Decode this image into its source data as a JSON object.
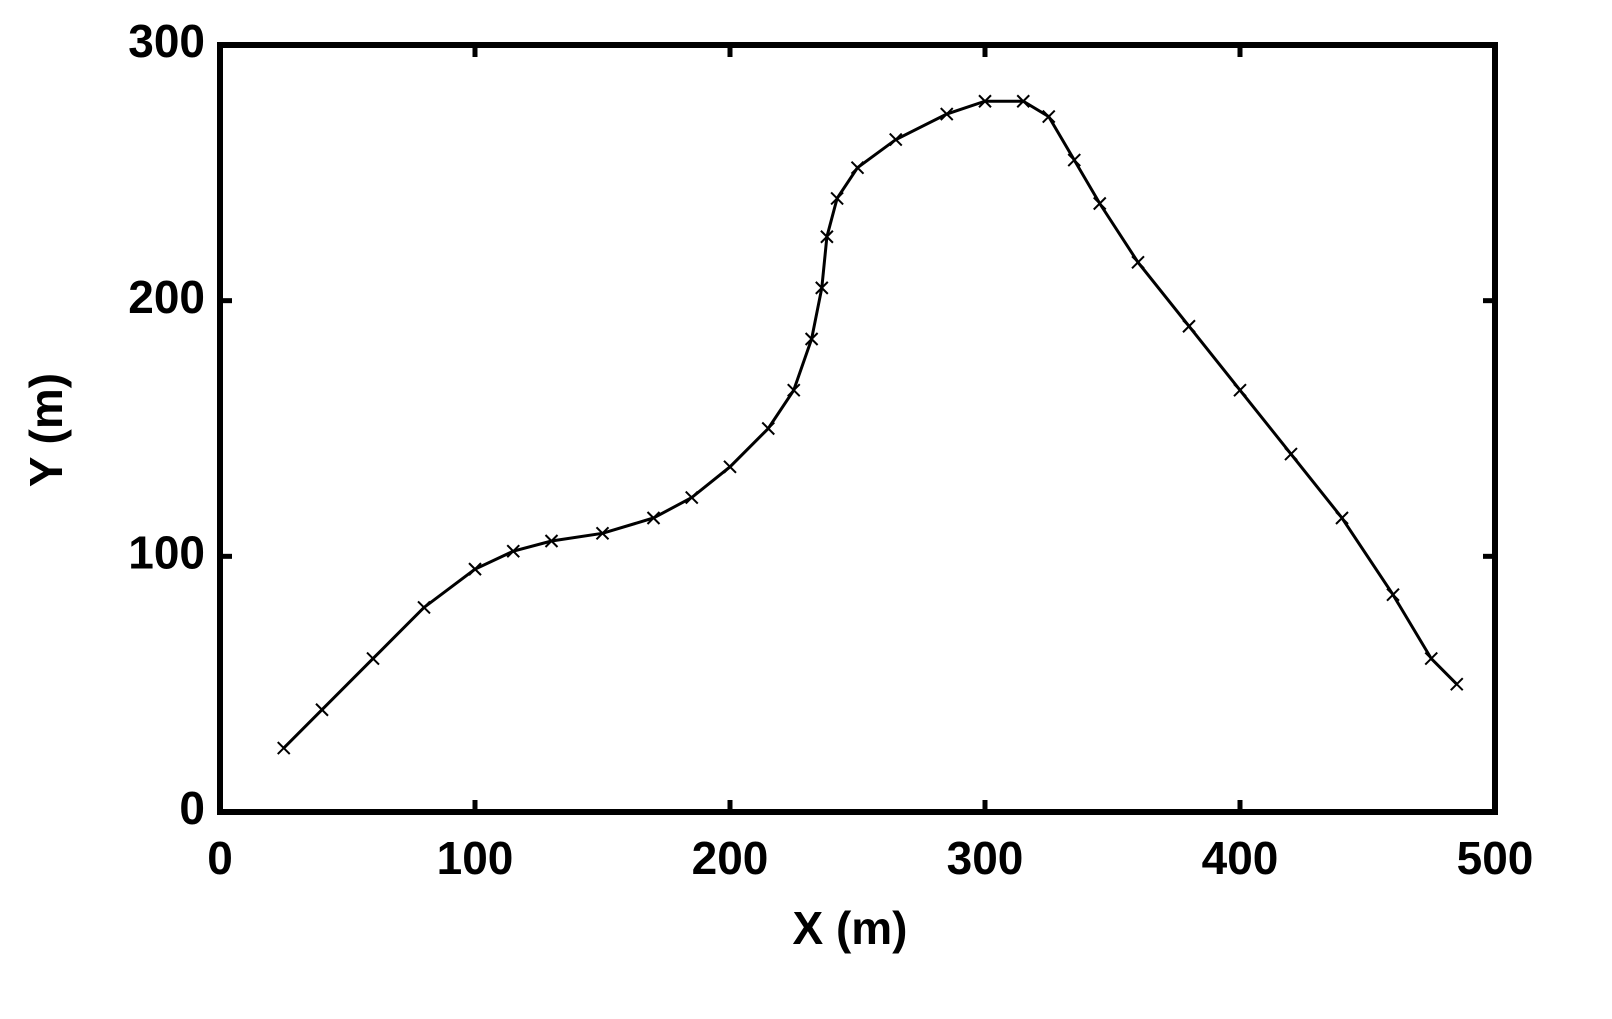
{
  "chart_data": {
    "type": "line",
    "marker": "x",
    "color": "#000000",
    "xlabel": "X (m)",
    "ylabel": "Y (m)",
    "x": [
      25,
      40,
      60,
      80,
      100,
      115,
      130,
      150,
      170,
      185,
      200,
      215,
      225,
      232,
      236,
      238,
      242,
      250,
      265,
      285,
      300,
      315,
      325,
      335,
      345,
      360,
      380,
      400,
      420,
      440,
      460,
      475,
      485
    ],
    "values": [
      25,
      40,
      60,
      80,
      95,
      102,
      106,
      109,
      115,
      123,
      135,
      150,
      165,
      185,
      205,
      225,
      240,
      252,
      263,
      273,
      278,
      278,
      272,
      255,
      238,
      215,
      190,
      165,
      140,
      115,
      85,
      60,
      50
    ],
    "xlim": [
      0,
      500
    ],
    "xticks": [
      0,
      100,
      200,
      300,
      400,
      500
    ],
    "ylim": [
      0,
      300
    ],
    "yticks": [
      0,
      100,
      200,
      300
    ]
  }
}
